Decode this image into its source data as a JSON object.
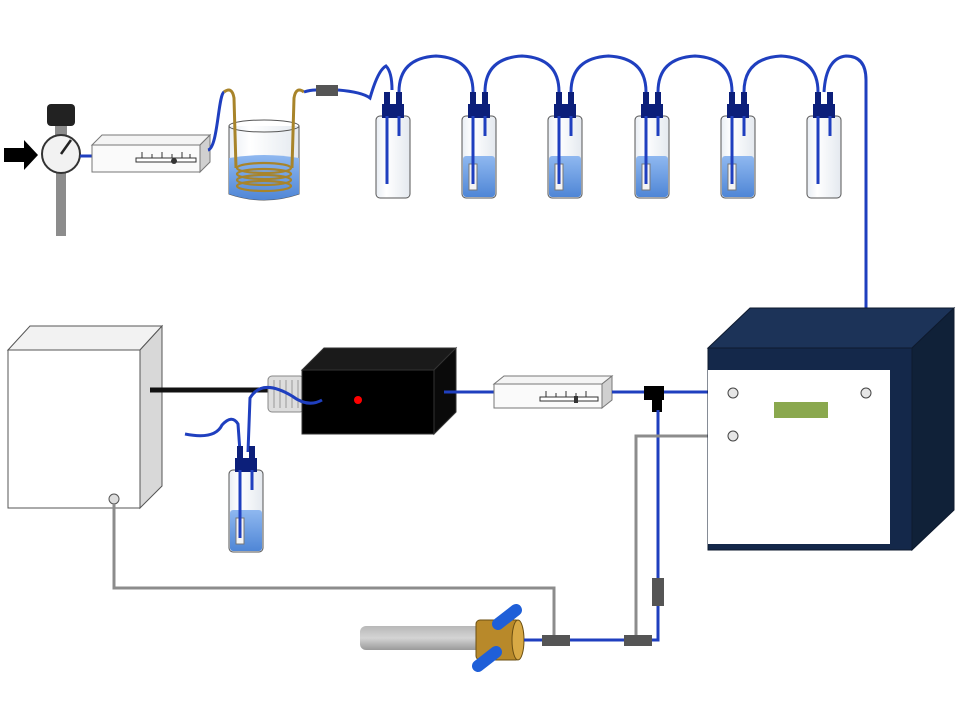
{
  "diagram": {
    "type": "lab-apparatus-schematic",
    "text_labels": [],
    "colors": {
      "tube_blue": "#1f3fbf",
      "tube_gold": "#a8842a",
      "liquid": "#6f9fe0",
      "cap_navy": "#0c1f7a",
      "cabinet_navy": "#14284a",
      "lcd_green": "#8aa84e",
      "indicator_red": "#ff0000",
      "cable_gray": "#8c8c8c"
    },
    "components": {
      "gas_inlet": {
        "icon": "arrow-icon"
      },
      "pressure_regulator": {
        "icon": "gauge-icon"
      },
      "flow_meters": {
        "count": 2
      },
      "water_bath": {
        "icon": "coil-beaker-icon"
      },
      "bubbler_bottles": {
        "count": 6,
        "filled": [
          false,
          true,
          true,
          true,
          true,
          false
        ]
      },
      "sample_bottle": {
        "filled": true
      },
      "controller_cabinet": {
        "icon": "cabinet-icon"
      },
      "black_source_unit": {
        "indicator": "red-led"
      },
      "analyzer_cabinet": {
        "display": "lcd-panel",
        "ports": 3
      },
      "probe": {
        "icon": "probe-icon"
      }
    }
  }
}
